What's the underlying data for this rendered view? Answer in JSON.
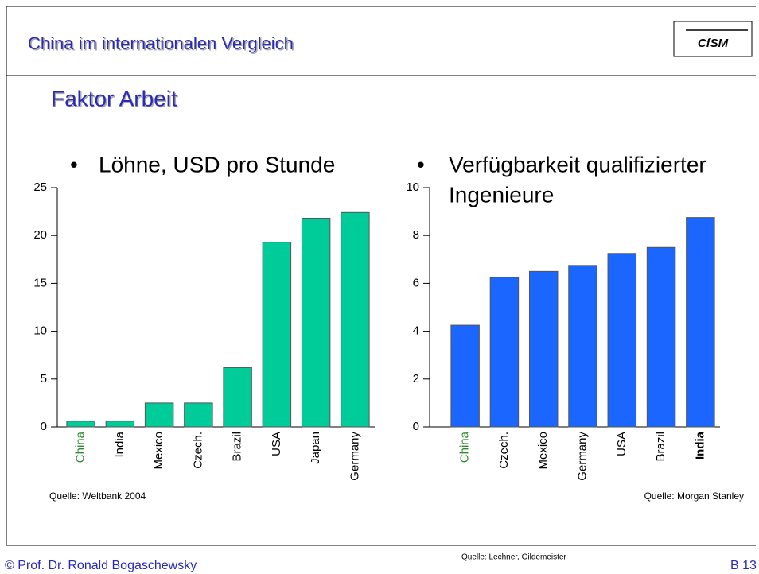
{
  "slide": {
    "title": "China im internationalen Vergleich",
    "logo": "CfSM",
    "subtitle": "Faktor Arbeit",
    "footer_left": "© Prof. Dr. Ronald Bogaschewsky",
    "footer_source": "Quelle: Lechner, Gildemeister",
    "page": "B 13"
  },
  "chart_data": [
    {
      "type": "bar",
      "title": "Löhne, USD pro Stunde",
      "source": "Quelle: Weltbank 2004",
      "categories": [
        "China",
        "India",
        "Mexico",
        "Czech.",
        "Brazil",
        "USA",
        "Japan",
        "Germany"
      ],
      "values": [
        0.6,
        0.6,
        2.5,
        2.5,
        6.2,
        19.3,
        21.8,
        22.4
      ],
      "color": "#00cc99",
      "ylim": [
        0,
        25
      ],
      "yticks": [
        0,
        5,
        10,
        15,
        20,
        25
      ],
      "grid": false
    },
    {
      "type": "bar",
      "title": [
        "Verfügbarkeit qualifizierter",
        "Ingenieure"
      ],
      "source": "Quelle: Morgan Stanley",
      "categories": [
        "China",
        "Czech.",
        "Mexico",
        "Germany",
        "USA",
        "Brazil",
        "India"
      ],
      "values": [
        4.25,
        6.25,
        6.5,
        6.75,
        7.25,
        7.5,
        8.75
      ],
      "color": "#1a66ff",
      "ylim": [
        0,
        10
      ],
      "yticks": [
        0,
        2,
        4,
        6,
        8,
        10
      ],
      "grid": false
    }
  ]
}
